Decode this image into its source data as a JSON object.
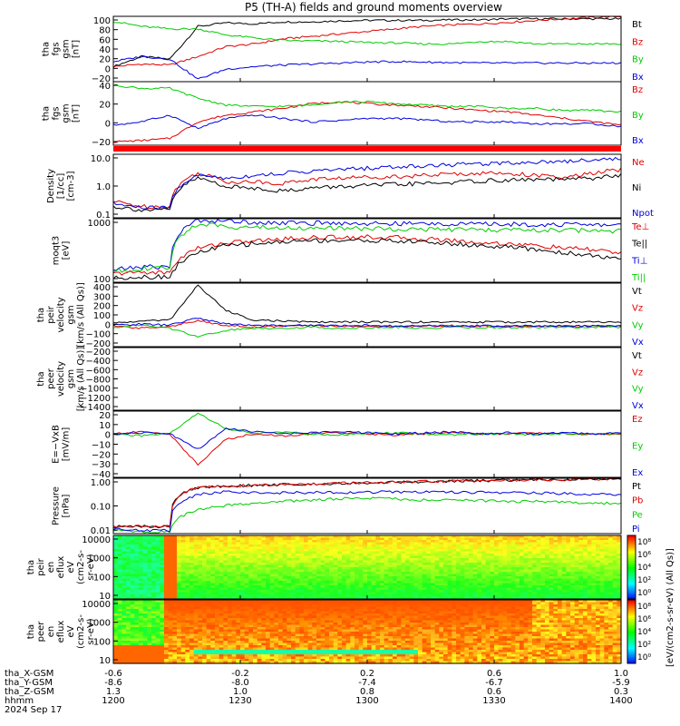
{
  "title": "P5 (TH-A) fields and ground moments overview",
  "colors": {
    "black": "#000000",
    "red": "#e00000",
    "green": "#00cc00",
    "blue": "#0000e0",
    "band": "#ff0000"
  },
  "chart_data": [
    {
      "type": "line",
      "ylabel": [
        "tha",
        "fgs",
        "gsm",
        "[nT]"
      ],
      "yticks": [
        "100",
        "80",
        "60",
        "40",
        "20",
        "0",
        "−20"
      ],
      "ylim": [
        -25,
        105
      ],
      "series": [
        {
          "name": "Bt",
          "color": "black",
          "values": [
            5,
            25,
            20,
            85,
            92,
            90,
            94,
            94,
            96,
            97,
            97,
            97,
            98,
            98,
            100,
            100,
            100,
            100,
            100
          ]
        },
        {
          "name": "Bz",
          "color": "red",
          "values": [
            5,
            10,
            8,
            25,
            45,
            50,
            60,
            65,
            70,
            75,
            80,
            85,
            88,
            90,
            93,
            97,
            100,
            103,
            105
          ]
        },
        {
          "name": "By",
          "color": "green",
          "values": [
            95,
            85,
            80,
            80,
            68,
            62,
            57,
            56,
            55,
            53,
            52,
            50,
            50,
            55,
            55,
            50,
            50,
            50,
            50
          ]
        },
        {
          "name": "Bx",
          "color": "blue",
          "values": [
            15,
            25,
            20,
            -20,
            0,
            5,
            8,
            10,
            12,
            14,
            15,
            14,
            13,
            12,
            12,
            12,
            12,
            12,
            12
          ]
        }
      ]
    },
    {
      "type": "line",
      "ylabel": [
        "tha",
        "fgs",
        "gsm",
        "[nT]"
      ],
      "yticks": [
        "40",
        "20",
        "0",
        "−20"
      ],
      "ylim": [
        -40,
        55
      ],
      "series": [
        {
          "name": "Bz",
          "color": "red",
          "values": [
            -35,
            -33,
            -30,
            -5,
            5,
            10,
            15,
            22,
            25,
            22,
            20,
            18,
            15,
            12,
            10,
            5,
            0,
            -5,
            -10
          ]
        },
        {
          "name": "By",
          "color": "green",
          "values": [
            50,
            45,
            45,
            30,
            20,
            18,
            18,
            20,
            25,
            25,
            22,
            20,
            18,
            18,
            15,
            15,
            12,
            12,
            10
          ]
        },
        {
          "name": "Bx",
          "color": "blue",
          "values": [
            -10,
            -5,
            5,
            -15,
            0,
            5,
            0,
            -5,
            -3,
            0,
            0,
            -2,
            -5,
            -5,
            -5,
            -8,
            -8,
            -8,
            -12
          ]
        }
      ]
    },
    {
      "type": "line",
      "ylog": true,
      "ylabel": [
        "Density",
        "[1/cc]",
        "[cm-3]"
      ],
      "yticks": [
        "10.0",
        "1.0",
        "0.1"
      ],
      "ylim": [
        0.08,
        14
      ],
      "series": [
        {
          "name": "Ne",
          "color": "red",
          "values": [
            0.3,
            0.2,
            0.2,
            3,
            1.5,
            1.5,
            1.3,
            1.8,
            2,
            2.2,
            2.3,
            2.5,
            2.8,
            3,
            3,
            2.5,
            2,
            3,
            4
          ]
        },
        {
          "name": "Ni",
          "color": "black",
          "values": [
            0.2,
            0.15,
            0.15,
            2,
            1,
            0.9,
            0.7,
            0.9,
            1,
            1.1,
            1.2,
            1.3,
            1.4,
            1.6,
            1.7,
            1.8,
            1.8,
            2,
            2.5
          ]
        },
        {
          "name": "Npot",
          "color": "blue",
          "values": [
            0.25,
            0.18,
            0.18,
            2.5,
            2,
            2.5,
            3,
            3.5,
            4,
            4.5,
            5,
            5.5,
            6,
            6.5,
            7,
            7.5,
            8,
            9,
            10
          ]
        }
      ]
    },
    {
      "type": "line",
      "ylog": true,
      "ylabel": [
        "moqt3",
        "[eV]"
      ],
      "yticks": [
        "1000",
        "100"
      ],
      "ylim": [
        80,
        9000
      ],
      "series": [
        {
          "name": "Te⊥",
          "color": "red",
          "values": [
            150,
            170,
            160,
            1000,
            1500,
            1700,
            2000,
            2200,
            2300,
            2300,
            2200,
            2000,
            1800,
            1500,
            1400,
            1200,
            1000,
            900,
            700
          ]
        },
        {
          "name": "Te||",
          "color": "black",
          "values": [
            110,
            120,
            120,
            700,
            1200,
            1400,
            1600,
            1800,
            1800,
            1800,
            1700,
            1600,
            1400,
            1200,
            1100,
            900,
            700,
            600,
            400
          ]
        },
        {
          "name": "Ti⊥",
          "color": "blue",
          "values": [
            200,
            250,
            250,
            8000,
            7500,
            7000,
            6500,
            6500,
            6500,
            6300,
            6200,
            6200,
            6100,
            6000,
            6000,
            5800,
            5800,
            5700,
            5600
          ]
        },
        {
          "name": "Ti||",
          "color": "green",
          "values": [
            180,
            220,
            220,
            6000,
            5000,
            4800,
            4500,
            4500,
            4400,
            4300,
            4200,
            4100,
            4000,
            3900,
            3900,
            3800,
            3800,
            3700,
            3600
          ]
        }
      ]
    },
    {
      "type": "line",
      "ylabel": [
        "tha",
        "peir",
        "velocity",
        "gsm",
        "[km/s (All Qs)]"
      ],
      "yticks": [
        "400",
        "300",
        "200",
        "100",
        "0",
        "−100",
        "−200"
      ],
      "ylim": [
        -200,
        420
      ],
      "series": [
        {
          "name": "Vt",
          "color": "black",
          "values": [
            30,
            50,
            60,
            400,
            150,
            60,
            50,
            40,
            40,
            40,
            40,
            40,
            40,
            40,
            40,
            40,
            40,
            40,
            40
          ]
        },
        {
          "name": "Vz",
          "color": "red",
          "values": [
            0,
            -20,
            0,
            50,
            10,
            -10,
            0,
            5,
            0,
            0,
            -5,
            0,
            5,
            0,
            0,
            -5,
            0,
            0,
            0
          ]
        },
        {
          "name": "Vy",
          "color": "green",
          "values": [
            -10,
            10,
            -20,
            -100,
            -40,
            -20,
            -20,
            -10,
            -20,
            -15,
            -10,
            -20,
            -10,
            -15,
            -10,
            -15,
            -10,
            -10,
            -10
          ]
        },
        {
          "name": "Vx",
          "color": "blue",
          "values": [
            10,
            20,
            10,
            80,
            20,
            10,
            5,
            10,
            5,
            10,
            0,
            5,
            0,
            5,
            0,
            5,
            0,
            5,
            0
          ]
        }
      ]
    },
    {
      "type": "line",
      "ylabel": [
        "tha",
        "peer",
        "velocity",
        "gsm",
        "[km/s (All Qs)]"
      ],
      "yticks": [
        "−200",
        "−400",
        "−600",
        "−800",
        "−1000",
        "−1200",
        "−1400"
      ],
      "ylim": [
        -1450,
        -180
      ],
      "legend": [
        "Vt",
        "Vz",
        "Vy",
        "Vx"
      ],
      "legend_colors": [
        "black",
        "red",
        "green",
        "blue"
      ],
      "series": []
    },
    {
      "type": "line",
      "ylabel": [
        "E=−VxB",
        "[mV/m]"
      ],
      "yticks": [
        "20",
        "10",
        "0",
        "−10",
        "−20",
        "−30",
        "−40"
      ],
      "ylim": [
        -42,
        22
      ],
      "series": [
        {
          "name": "Ez",
          "color": "red",
          "values": [
            0,
            2,
            0,
            -30,
            -5,
            0,
            -2,
            0,
            1,
            0,
            -1,
            0,
            1,
            0,
            0,
            1,
            0,
            0,
            0
          ]
        },
        {
          "name": "Ey",
          "color": "green",
          "values": [
            0,
            -2,
            0,
            20,
            5,
            0,
            2,
            0,
            -1,
            0,
            1,
            0,
            -1,
            0,
            0,
            -1,
            0,
            0,
            0
          ]
        },
        {
          "name": "Ex",
          "color": "blue",
          "values": [
            0,
            1,
            0,
            -15,
            5,
            2,
            0,
            1,
            2,
            1,
            0,
            1,
            2,
            0,
            1,
            0,
            1,
            0,
            1
          ]
        }
      ]
    },
    {
      "type": "line",
      "ylog": true,
      "ylabel": [
        "Pressure",
        "[nPa]"
      ],
      "yticks": [
        "1.00",
        "0.10",
        "0.01"
      ],
      "ylim": [
        0.004,
        5
      ],
      "series": [
        {
          "name": "Pt",
          "color": "black",
          "values": [
            0.01,
            0.01,
            0.01,
            1.5,
            1.8,
            2,
            2.2,
            2.4,
            2.6,
            2.8,
            3,
            3.2,
            3.4,
            3.6,
            3.8,
            4,
            4.2,
            4.4,
            4.6
          ]
        },
        {
          "name": "Pb",
          "color": "red",
          "values": [
            0.01,
            0.01,
            0.01,
            1.5,
            1.8,
            2,
            2.2,
            2.4,
            2.6,
            2.8,
            3,
            3.2,
            3.4,
            3.6,
            3.8,
            4,
            4.2,
            4.4,
            4.6
          ]
        },
        {
          "name": "Pe",
          "color": "green",
          "values": [
            0.006,
            0.005,
            0.005,
            0.08,
            0.15,
            0.2,
            0.25,
            0.3,
            0.35,
            0.4,
            0.35,
            0.3,
            0.3,
            0.28,
            0.25,
            0.25,
            0.22,
            0.2,
            0.2
          ]
        },
        {
          "name": "Pi",
          "color": "blue",
          "values": [
            0.008,
            0.006,
            0.006,
            0.6,
            0.9,
            0.8,
            0.75,
            0.8,
            0.8,
            0.82,
            0.85,
            0.85,
            0.82,
            0.8,
            0.78,
            0.75,
            0.7,
            0.65,
            0.6
          ]
        }
      ]
    },
    {
      "type": "heatmap",
      "ylabel": [
        "tha",
        "peir",
        "en",
        "eflux",
        "eV",
        "(cm2-s-",
        "sr-eV)"
      ],
      "yticks": [
        "10000",
        "1000",
        "100",
        "10"
      ],
      "colorbar_label": "[eV/(cm2-s-sr-eV) (All Qs)]",
      "colorbar_ticks": [
        "10⁸",
        "10⁶",
        "10⁴",
        "10²",
        "10⁰"
      ]
    },
    {
      "type": "heatmap",
      "ylabel": [
        "tha",
        "peer",
        "en",
        "eflux",
        "eV",
        "(cm2-s-",
        "sr-eV)"
      ],
      "yticks": [
        "10000",
        "1000",
        "100",
        "10"
      ],
      "colorbar_label": "[eV/(cm2-s-sr-eV) (All Qs)]",
      "colorbar_ticks": [
        "10⁸",
        "10⁶",
        "10⁴",
        "10²",
        "10⁰"
      ]
    }
  ],
  "xaxis": {
    "labels": [
      "tha_X-GSM",
      "tha_Y-GSM",
      "tha_Z-GSM",
      "hhmm",
      "2024 Sep 17"
    ],
    "rows": [
      [
        "-0.6",
        "-0.2",
        "0.2",
        "0.6",
        "1.0"
      ],
      [
        "-8.6",
        "-8.0",
        "-7.4",
        "-6.7",
        "-5.9"
      ],
      [
        "1.3",
        "1.0",
        "0.8",
        "0.6",
        "0.3"
      ],
      [
        "1200",
        "1230",
        "1300",
        "1330",
        "1400"
      ]
    ]
  }
}
